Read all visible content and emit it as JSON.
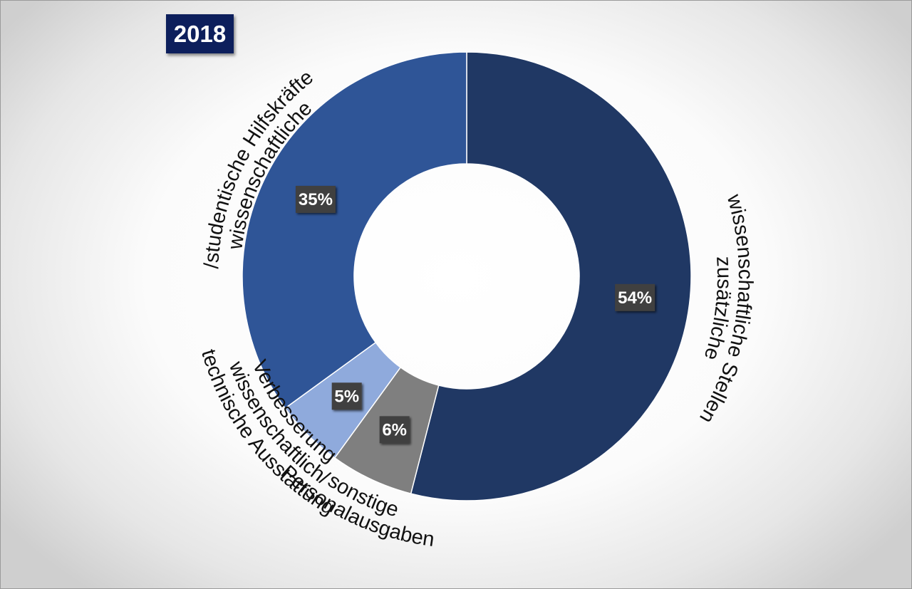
{
  "badge": {
    "label": "2018"
  },
  "chart_data": {
    "type": "pie",
    "variant": "doughnut",
    "start_angle_deg": 0,
    "direction": "clockwise",
    "slices": [
      {
        "label_lines": [
          "zusätzliche",
          "wissenschaftliche Stellen"
        ],
        "value": 54,
        "data_label": "54%",
        "color": "#203864"
      },
      {
        "label_lines": [
          "sonstige",
          "Personalausgaben"
        ],
        "value": 6,
        "data_label": "6%",
        "color": "#7f7f7f"
      },
      {
        "label_lines": [
          "Verbesserung",
          "wissenschaftlich/",
          "technische Ausstattung"
        ],
        "value": 5,
        "data_label": "5%",
        "color": "#8faadc"
      },
      {
        "label_lines": [
          "wissenschaftliche",
          "/studentische Hilfskräfte"
        ],
        "value": 35,
        "data_label": "35%",
        "color": "#2f5597"
      }
    ]
  }
}
